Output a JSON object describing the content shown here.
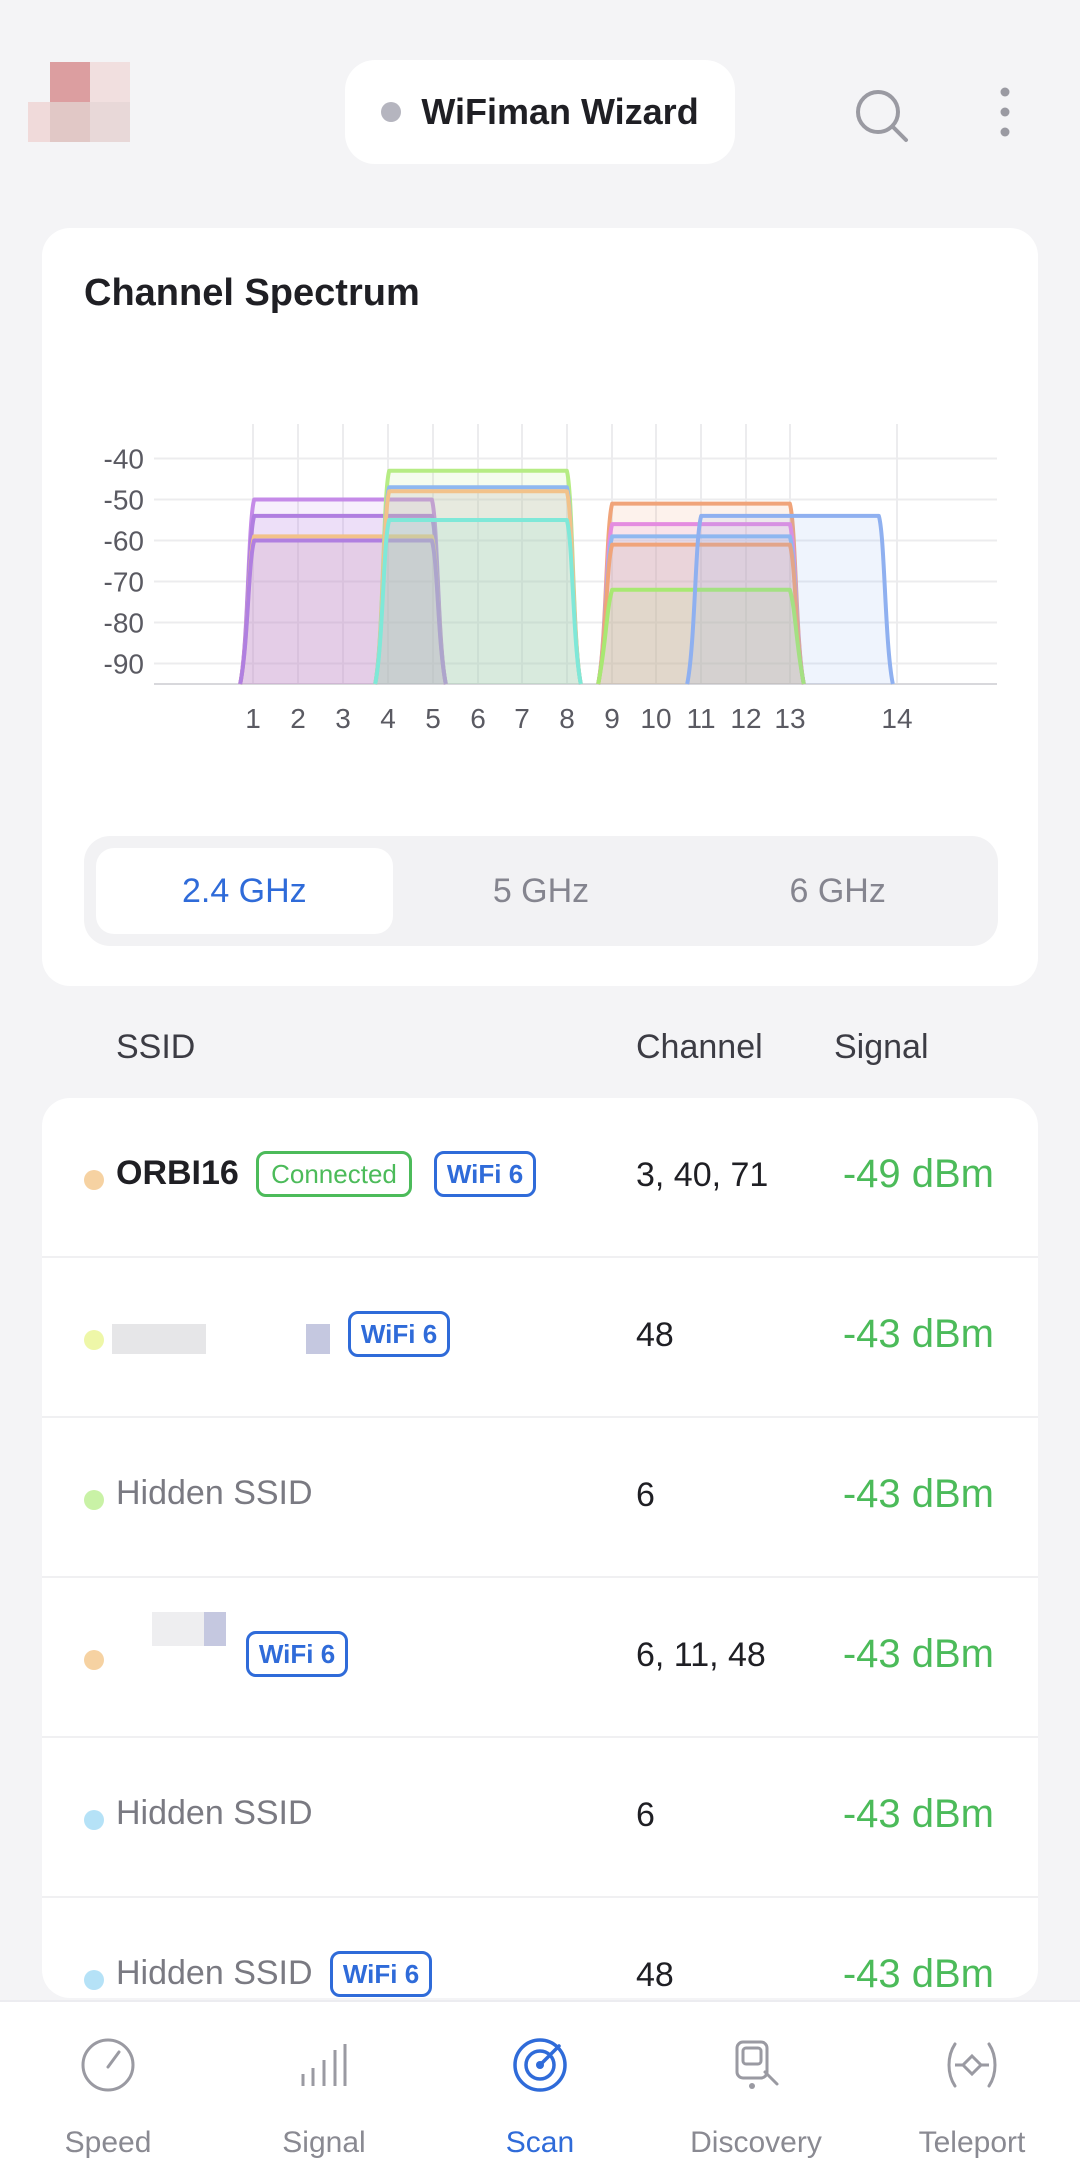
{
  "header": {
    "wizard_label": "WiFiman Wizard",
    "icons": [
      "search-icon",
      "more-vertical-icon"
    ]
  },
  "spectrum": {
    "title": "Channel Spectrum",
    "tabs": [
      {
        "label": "2.4 GHz",
        "active": true
      },
      {
        "label": "5 GHz",
        "active": false
      },
      {
        "label": "6 GHz",
        "active": false
      }
    ]
  },
  "chart_data": {
    "type": "area",
    "title": "Channel Spectrum",
    "xlabel": "",
    "ylabel": "",
    "x_ticks": [
      "1",
      "2",
      "3",
      "4",
      "5",
      "6",
      "7",
      "8",
      "9",
      "10",
      "11",
      "12",
      "13",
      "14"
    ],
    "y_ticks": [
      "-40",
      "-50",
      "-60",
      "-70",
      "-80",
      "-90"
    ],
    "ylim": [
      -95,
      -35
    ],
    "grid": true,
    "series": [
      {
        "center": 3,
        "signal": -50,
        "color": "#c58be8"
      },
      {
        "center": 3,
        "signal": -54,
        "color": "#b07fe0"
      },
      {
        "center": 3,
        "signal": -59,
        "color": "#f2c28a"
      },
      {
        "center": 3,
        "signal": -60,
        "color": "#b07fe0"
      },
      {
        "center": 6,
        "signal": -43,
        "color": "#b6ec84"
      },
      {
        "center": 6,
        "signal": -47,
        "color": "#8fb8f0"
      },
      {
        "center": 6,
        "signal": -48,
        "color": "#f2c28a"
      },
      {
        "center": 6,
        "signal": -55,
        "color": "#7fe8d8"
      },
      {
        "center": 11,
        "signal": -51,
        "color": "#f0a47a"
      },
      {
        "center": 11,
        "signal": -56,
        "color": "#e48ce0"
      },
      {
        "center": 11,
        "signal": -59,
        "color": "#8fb8f0"
      },
      {
        "center": 11,
        "signal": -61,
        "color": "#f0a47a"
      },
      {
        "center": 11,
        "signal": -72,
        "color": "#a8e872"
      },
      {
        "center": 13,
        "signal": -54,
        "color": "#8fb0f0"
      }
    ]
  },
  "table": {
    "headers": {
      "ssid": "SSID",
      "channel": "Channel",
      "signal": "Signal"
    },
    "rows": [
      {
        "ssid": "ORBI16",
        "channel": "3, 40, 71",
        "signal": "-49 dBm",
        "dot": "#f6d2a2",
        "badges": [
          "Connected",
          "WiFi 6"
        ]
      },
      {
        "ssid": "",
        "channel": "48",
        "signal": "-43 dBm",
        "dot": "#eef7a8",
        "badges": [
          "WiFi 6"
        ]
      },
      {
        "ssid": "Hidden SSID",
        "channel": "6",
        "signal": "-43 dBm",
        "dot": "#c9f2a6",
        "badges": []
      },
      {
        "ssid": "",
        "channel": "6, 11, 48",
        "signal": "-43 dBm",
        "dot": "#f6d2a2",
        "badges": [
          "WiFi 6"
        ]
      },
      {
        "ssid": "Hidden SSID",
        "channel": "6",
        "signal": "-43 dBm",
        "dot": "#b5e2f7",
        "badges": []
      },
      {
        "ssid": "Hidden SSID",
        "channel": "48",
        "signal": "-43 dBm",
        "dot": "#b5e2f7",
        "badges": [
          "WiFi 6"
        ]
      }
    ]
  },
  "nav": [
    {
      "label": "Speed",
      "icon": "speedometer-icon",
      "active": false
    },
    {
      "label": "Signal",
      "icon": "signal-bars-icon",
      "active": false
    },
    {
      "label": "Scan",
      "icon": "radar-scan-icon",
      "active": true
    },
    {
      "label": "Discovery",
      "icon": "device-discovery-icon",
      "active": false
    },
    {
      "label": "Teleport",
      "icon": "teleport-icon",
      "active": false
    }
  ]
}
